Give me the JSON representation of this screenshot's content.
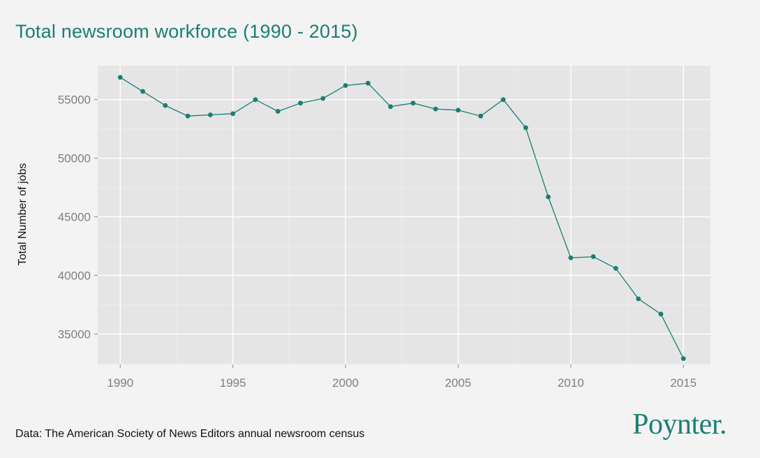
{
  "title": "Total newsroom workforce (1990 - 2015)",
  "ylabel": "Total Number of jobs",
  "source": "Data: The American Society of News Editors annual newsroom census",
  "brand": "Poynter.",
  "colors": {
    "accent": "#1a7f73",
    "panel": "#e5e5e5",
    "grid": "#ffffff",
    "tick_text": "#7f7f7f"
  },
  "chart_data": {
    "type": "line",
    "title": "Total newsroom workforce (1990 - 2015)",
    "xlabel": "",
    "ylabel": "Total Number of jobs",
    "xlim": [
      1989,
      2016.2
    ],
    "ylim": [
      32400,
      57900
    ],
    "xticks": [
      1990,
      1995,
      2000,
      2005,
      2010,
      2015
    ],
    "yticks": [
      35000,
      40000,
      45000,
      50000,
      55000
    ],
    "grid": true,
    "legend": "none",
    "series": [
      {
        "x": [
          1990,
          1991,
          1992,
          1993,
          1994,
          1995,
          1996,
          1997,
          1998,
          1999,
          2000,
          2001,
          2002,
          2003,
          2004,
          2005,
          2006,
          2007,
          2008,
          2009,
          2010,
          2011,
          2012,
          2013,
          2014,
          2015
        ],
        "values": [
          56900,
          55700,
          54500,
          53600,
          53700,
          53800,
          55000,
          54000,
          54700,
          55100,
          56200,
          56400,
          54400,
          54700,
          54200,
          54100,
          53600,
          55000,
          52600,
          46700,
          41500,
          41600,
          40600,
          38000,
          36700,
          32900
        ]
      }
    ]
  }
}
